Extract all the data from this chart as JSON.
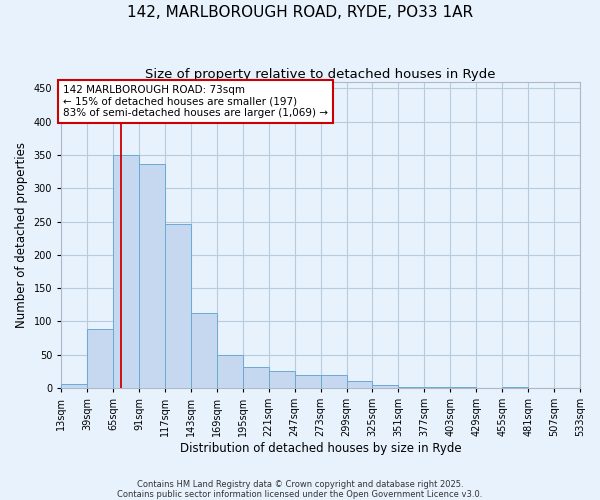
{
  "title": "142, MARLBOROUGH ROAD, RYDE, PO33 1AR",
  "subtitle": "Size of property relative to detached houses in Ryde",
  "xlabel": "Distribution of detached houses by size in Ryde",
  "ylabel": "Number of detached properties",
  "bin_edges": [
    13,
    39,
    65,
    91,
    117,
    143,
    169,
    195,
    221,
    247,
    273,
    299,
    325,
    351,
    377,
    403,
    429,
    455,
    481,
    507,
    533
  ],
  "bar_heights": [
    6,
    88,
    350,
    336,
    246,
    112,
    49,
    31,
    25,
    20,
    20,
    10,
    4,
    2,
    1,
    1,
    0,
    1,
    0,
    0
  ],
  "bar_color": "#c5d8f0",
  "bar_edgecolor": "#6aaad4",
  "grid_color": "#b8ccdf",
  "bg_color": "#e8f2fc",
  "vline_x": 73,
  "vline_color": "#cc0000",
  "annotation_text": "142 MARLBOROUGH ROAD: 73sqm\n← 15% of detached houses are smaller (197)\n83% of semi-detached houses are larger (1,069) →",
  "annotation_box_edgecolor": "#cc0000",
  "annotation_fill": "#ffffff",
  "ylim": [
    0,
    460
  ],
  "yticks": [
    0,
    50,
    100,
    150,
    200,
    250,
    300,
    350,
    400,
    450
  ],
  "footer_line1": "Contains HM Land Registry data © Crown copyright and database right 2025.",
  "footer_line2": "Contains public sector information licensed under the Open Government Licence v3.0.",
  "title_fontsize": 11,
  "subtitle_fontsize": 9.5,
  "tick_fontsize": 7,
  "ylabel_fontsize": 8.5,
  "xlabel_fontsize": 8.5,
  "annotation_fontsize": 7.5,
  "footer_fontsize": 6
}
